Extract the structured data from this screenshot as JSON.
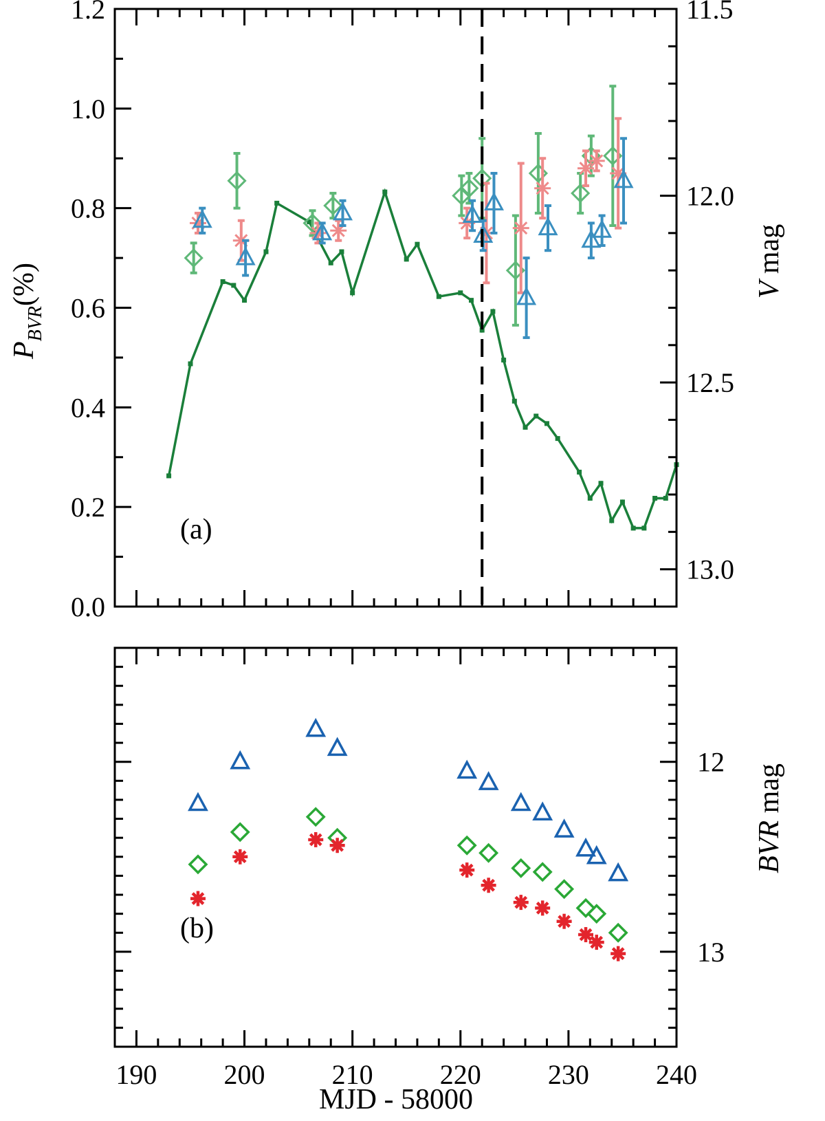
{
  "colors": {
    "frame": "#000000",
    "v_curve": "#1a7f3a",
    "pol_B": "#3a8fc0",
    "pol_V": "#5fb878",
    "pol_R": "#ee8a8a",
    "mag_B": "#1a62b0",
    "mag_V": "#2aa836",
    "mag_R": "#e3252c"
  },
  "chart_data": [
    {
      "type": "scatter",
      "panel_label": "(a)",
      "xlim": [
        188,
        240
      ],
      "x_ticks": [
        190,
        200,
        210,
        220,
        230,
        240
      ],
      "ylim": [
        0.0,
        1.2
      ],
      "y_ticks": [
        "0.0",
        "0.2",
        "0.4",
        "0.6",
        "0.8",
        "1.0",
        "1.2"
      ],
      "ylabel_main": "P",
      "ylabel_sub": "BVR",
      "ylabel_unit": "(%)",
      "y2lim": [
        11.5,
        13.1
      ],
      "y2_ticks": [
        "11.5",
        "12.0",
        "12.5",
        "13.0"
      ],
      "y2label_italic": "V",
      "y2label_rest": " mag",
      "vline_x": 222,
      "series": [
        {
          "name": "P_V",
          "marker": "diamond",
          "points": [
            {
              "x": 195.3,
              "y": 0.7,
              "err": 0.03
            },
            {
              "x": 199.3,
              "y": 0.855,
              "err": 0.055
            },
            {
              "x": 206.3,
              "y": 0.77,
              "err": 0.025
            },
            {
              "x": 208.2,
              "y": 0.805,
              "err": 0.025
            },
            {
              "x": 220.1,
              "y": 0.825,
              "err": 0.04
            },
            {
              "x": 220.8,
              "y": 0.84,
              "err": 0.03
            },
            {
              "x": 222.0,
              "y": 0.86,
              "err": 0.08
            },
            {
              "x": 225.1,
              "y": 0.675,
              "err": 0.11
            },
            {
              "x": 227.2,
              "y": 0.87,
              "err": 0.08
            },
            {
              "x": 231.1,
              "y": 0.83,
              "err": 0.04
            },
            {
              "x": 232.1,
              "y": 0.905,
              "err": 0.04
            },
            {
              "x": 234.1,
              "y": 0.905,
              "err": 0.14
            }
          ]
        },
        {
          "name": "P_R",
          "marker": "asterisk",
          "points": [
            {
              "x": 195.7,
              "y": 0.77,
              "err": 0.02
            },
            {
              "x": 199.7,
              "y": 0.735,
              "err": 0.04
            },
            {
              "x": 206.8,
              "y": 0.75,
              "err": 0.02
            },
            {
              "x": 208.7,
              "y": 0.755,
              "err": 0.02
            },
            {
              "x": 220.6,
              "y": 0.77,
              "err": 0.03
            },
            {
              "x": 222.4,
              "y": 0.75,
              "err": 0.1
            },
            {
              "x": 225.6,
              "y": 0.76,
              "err": 0.13
            },
            {
              "x": 227.6,
              "y": 0.84,
              "err": 0.06
            },
            {
              "x": 231.6,
              "y": 0.88,
              "err": 0.035
            },
            {
              "x": 232.6,
              "y": 0.895,
              "err": 0.02
            },
            {
              "x": 234.6,
              "y": 0.87,
              "err": 0.11
            }
          ]
        },
        {
          "name": "P_B",
          "marker": "triangle",
          "points": [
            {
              "x": 196.1,
              "y": 0.775,
              "err": 0.025
            },
            {
              "x": 200.1,
              "y": 0.7,
              "err": 0.035
            },
            {
              "x": 207.2,
              "y": 0.75,
              "err": 0.02
            },
            {
              "x": 209.1,
              "y": 0.79,
              "err": 0.025
            },
            {
              "x": 221.1,
              "y": 0.785,
              "err": 0.03
            },
            {
              "x": 222.1,
              "y": 0.745,
              "err": 0.03
            },
            {
              "x": 223.1,
              "y": 0.81,
              "err": 0.06
            },
            {
              "x": 226.1,
              "y": 0.62,
              "err": 0.08
            },
            {
              "x": 228.1,
              "y": 0.76,
              "err": 0.045
            },
            {
              "x": 232.1,
              "y": 0.735,
              "err": 0.035
            },
            {
              "x": 233.1,
              "y": 0.755,
              "err": 0.03
            },
            {
              "x": 235.1,
              "y": 0.855,
              "err": 0.085
            }
          ]
        }
      ],
      "v_mag_curve": {
        "name": "V mag",
        "x": [
          193,
          195,
          198,
          199,
          200,
          202,
          203,
          206,
          208,
          209,
          210,
          213,
          215,
          216,
          218,
          220,
          221,
          222,
          223,
          224,
          225,
          226,
          227,
          228,
          229,
          231,
          232,
          233,
          234,
          235,
          236,
          237,
          238,
          239,
          240
        ],
        "y": [
          12.75,
          12.45,
          12.23,
          12.24,
          12.28,
          12.15,
          12.02,
          12.07,
          12.18,
          12.15,
          12.26,
          11.99,
          12.17,
          12.13,
          12.27,
          12.26,
          12.28,
          12.36,
          12.31,
          12.44,
          12.55,
          12.62,
          12.59,
          12.61,
          12.65,
          12.74,
          12.81,
          12.77,
          12.87,
          12.82,
          12.89,
          12.89,
          12.81,
          12.81,
          12.72
        ]
      }
    },
    {
      "type": "scatter",
      "panel_label": "(b)",
      "xlim": [
        188,
        240
      ],
      "x_ticks": [
        190,
        200,
        210,
        220,
        230,
        240
      ],
      "xlabel": "MJD - 58000",
      "ylim": [
        13.5,
        11.4
      ],
      "y2_ticks": [
        "12",
        "13"
      ],
      "y2label_italic": "BVR",
      "y2label_rest": " mag",
      "series": [
        {
          "name": "B",
          "marker": "triangle",
          "x": [
            195.7,
            199.6,
            206.6,
            208.6,
            220.6,
            222.6,
            225.6,
            227.6,
            229.6,
            231.6,
            232.6,
            234.6
          ],
          "y": [
            12.22,
            12.0,
            11.83,
            11.93,
            12.05,
            12.11,
            12.22,
            12.27,
            12.36,
            12.46,
            12.5,
            12.59
          ]
        },
        {
          "name": "V",
          "marker": "diamond",
          "x": [
            195.7,
            199.6,
            206.6,
            208.6,
            220.6,
            222.6,
            225.6,
            227.6,
            229.6,
            231.6,
            232.6,
            234.6
          ],
          "y": [
            12.54,
            12.37,
            12.29,
            12.4,
            12.44,
            12.48,
            12.56,
            12.58,
            12.67,
            12.77,
            12.8,
            12.9
          ]
        },
        {
          "name": "R",
          "marker": "asterisk",
          "x": [
            195.7,
            199.6,
            206.6,
            208.6,
            220.6,
            222.6,
            225.6,
            227.6,
            229.6,
            231.6,
            232.6,
            234.6
          ],
          "y": [
            12.72,
            12.5,
            12.41,
            12.44,
            12.57,
            12.65,
            12.74,
            12.77,
            12.84,
            12.91,
            12.95,
            13.01
          ]
        }
      ]
    }
  ]
}
